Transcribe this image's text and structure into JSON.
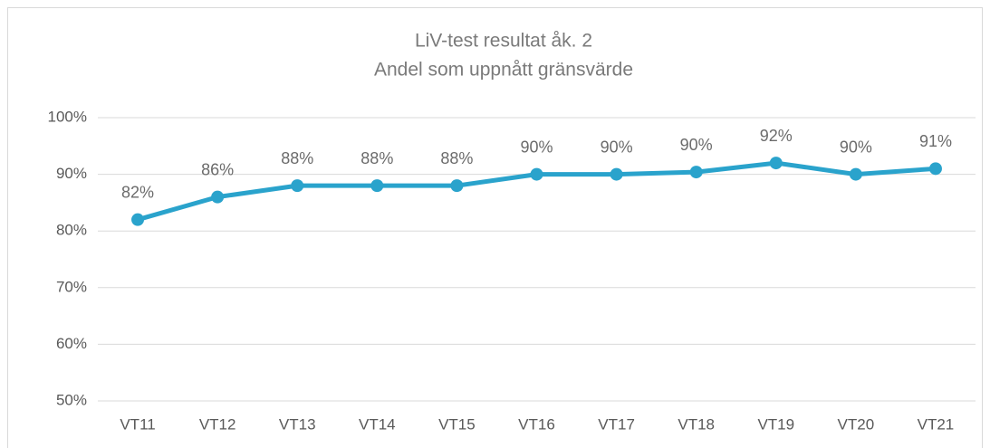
{
  "chart_data": {
    "type": "line",
    "title": "LiV-test resultat åk. 2",
    "subtitle": "Andel som uppnått gränsvärde",
    "categories": [
      "VT11",
      "VT12",
      "VT13",
      "VT14",
      "VT15",
      "VT16",
      "VT17",
      "VT18",
      "VT19",
      "VT20",
      "VT21"
    ],
    "series": [
      {
        "name": "Andel",
        "color": "#2aa3cc",
        "values": [
          82,
          86,
          88,
          88,
          88,
          90,
          90,
          90.4,
          92,
          90,
          91
        ],
        "value_labels": [
          "82%",
          "86%",
          "88%",
          "88%",
          "88%",
          "90%",
          "90%",
          "90%",
          "92%",
          "90%",
          "91%"
        ]
      }
    ],
    "ylim": [
      50,
      100
    ],
    "yticks": [
      {
        "value": 50,
        "label": "50%"
      },
      {
        "value": 60,
        "label": "60%"
      },
      {
        "value": 70,
        "label": "70%"
      },
      {
        "value": 80,
        "label": "80%"
      },
      {
        "value": 90,
        "label": "90%"
      },
      {
        "value": 100,
        "label": "100%"
      }
    ],
    "grid": true
  }
}
